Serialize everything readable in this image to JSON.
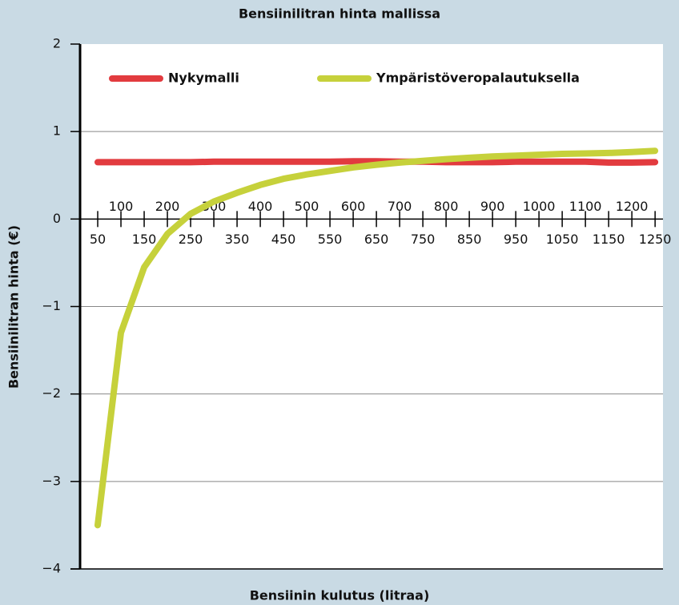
{
  "chart_data": {
    "type": "line",
    "title": "Bensiinilitran hinta mallissa",
    "xlabel": "Bensiinin kulutus (litraa)",
    "ylabel": "Bensiinilitran hinta (€)",
    "x": [
      50,
      100,
      150,
      200,
      250,
      300,
      350,
      400,
      450,
      500,
      550,
      600,
      650,
      700,
      750,
      800,
      850,
      900,
      950,
      1000,
      1050,
      1100,
      1150,
      1200,
      1250
    ],
    "xlim": [
      12,
      1267
    ],
    "xticks": [
      50,
      100,
      150,
      200,
      250,
      300,
      350,
      400,
      450,
      500,
      550,
      600,
      650,
      700,
      750,
      800,
      850,
      900,
      950,
      1000,
      1050,
      1100,
      1150,
      1200,
      1250
    ],
    "ylim": [
      -4,
      2
    ],
    "yticks": [
      {
        "value": -4,
        "label": "−4"
      },
      {
        "value": -3,
        "label": "−3"
      },
      {
        "value": -2,
        "label": "−2"
      },
      {
        "value": -1,
        "label": "−1"
      },
      0,
      1,
      2
    ],
    "grid": true,
    "legend": "top",
    "series": [
      {
        "name": "Nykymalli",
        "color": "#e23b3f",
        "values": [
          0.65,
          0.65,
          0.65,
          0.65,
          0.65,
          0.655,
          0.655,
          0.655,
          0.655,
          0.655,
          0.655,
          0.66,
          0.66,
          0.655,
          0.655,
          0.65,
          0.65,
          0.65,
          0.655,
          0.655,
          0.655,
          0.655,
          0.645,
          0.645,
          0.65
        ]
      },
      {
        "name": "Ympäristöveropalautuksella",
        "color": "#c6d13b",
        "values": [
          -3.5,
          -1.3,
          -0.55,
          -0.17,
          0.06,
          0.2,
          0.3,
          0.39,
          0.46,
          0.51,
          0.55,
          0.59,
          0.62,
          0.645,
          0.665,
          0.685,
          0.7,
          0.715,
          0.725,
          0.735,
          0.745,
          0.75,
          0.755,
          0.765,
          0.78
        ]
      }
    ]
  }
}
